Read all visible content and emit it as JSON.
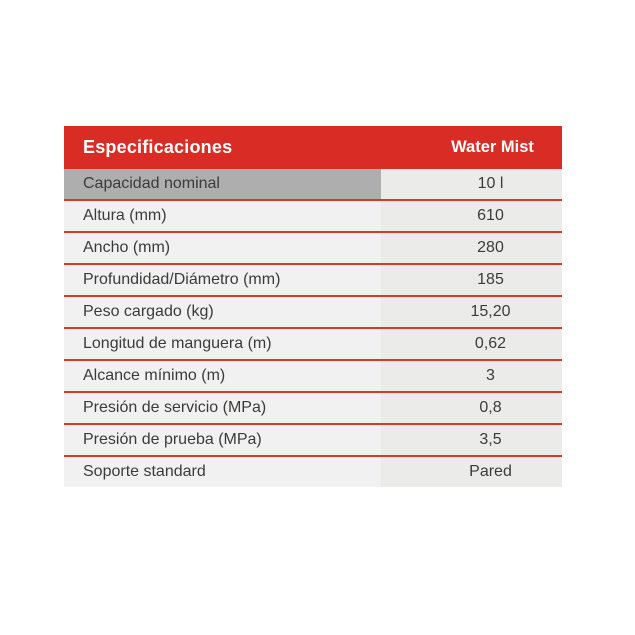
{
  "table": {
    "header": {
      "title": "Especificaciones",
      "column": "Water Mist"
    },
    "rows": [
      {
        "label": "Capacidad nominal",
        "value": "10 l",
        "highlight": true
      },
      {
        "label": "Altura (mm)",
        "value": "610"
      },
      {
        "label": "Ancho (mm)",
        "value": "280"
      },
      {
        "label": "Profundidad/Diámetro (mm)",
        "value": "185"
      },
      {
        "label": "Peso cargado (kg)",
        "value": "15,20"
      },
      {
        "label": "Longitud de manguera (m)",
        "value": "0,62"
      },
      {
        "label": "Alcance mínimo (m)",
        "value": "3"
      },
      {
        "label": "Presión de servicio (MPa)",
        "value": "0,8"
      },
      {
        "label": "Presión de prueba (MPa)",
        "value": "3,5"
      },
      {
        "label": "Soporte standard",
        "value": "Pared"
      }
    ],
    "colors": {
      "accent_red": "#D92C25",
      "header_text": "#FFFFFF",
      "separator": "#D33A2C",
      "row1_label_bg": "#AFAEAE",
      "label_bg": "#F2F1F1",
      "value_bg": "#EBEBEA",
      "text": "#3B3B3A"
    }
  }
}
